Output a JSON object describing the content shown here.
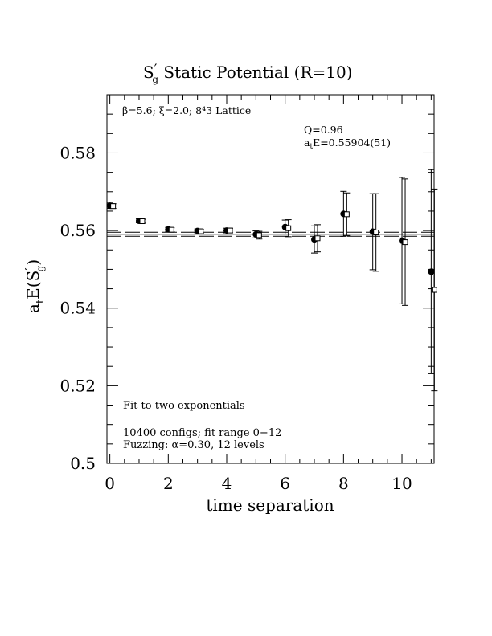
{
  "chart_data": {
    "type": "scatter",
    "title": "S′g  Static Potential (R=10)",
    "title_main": "S",
    "title_prime": "′",
    "title_sub": "g",
    "title_rest": "  Static Potential (R=10)",
    "xlabel": "time separation",
    "ylabel_main": "a",
    "ylabel_sub": "t",
    "ylabel_mid": "E(S",
    "ylabel_prime": "′",
    "ylabel_sub2": "g",
    "ylabel_end": ")",
    "xlim": [
      -0.1,
      11.1
    ],
    "ylim": [
      0.5,
      0.595
    ],
    "x_ticks": [
      0,
      2,
      4,
      6,
      8,
      10
    ],
    "x_tick_labels": [
      "0",
      "2",
      "4",
      "6",
      "8",
      "10"
    ],
    "y_ticks": [
      0.5,
      0.52,
      0.54,
      0.56,
      0.58
    ],
    "y_tick_labels": [
      "0.5",
      "0.52",
      "0.54",
      "0.56",
      "0.58"
    ],
    "annotations": {
      "lattice": "β=5.6; ξ=2.0; 8⁴3 Lattice",
      "q_value": "Q=0.96",
      "energy_main": "a",
      "energy_sub": "t",
      "energy_rest": "E=0.55904(51)",
      "fit_type": "Fit to two exponentials",
      "configs": "10400 configs; fit range 0−12",
      "fuzzing": "Fuzzing: α=0.30, 12 levels"
    },
    "fit": {
      "value": 0.55904,
      "error": 0.00051
    },
    "series": [
      {
        "marker": "filled-circle",
        "points": [
          {
            "x": 0,
            "y": 0.5664,
            "err": 0.0007
          },
          {
            "x": 1,
            "y": 0.5625,
            "err": 0.0005
          },
          {
            "x": 2,
            "y": 0.5603,
            "err": 0.0005
          },
          {
            "x": 3,
            "y": 0.5599,
            "err": 0.0005
          },
          {
            "x": 4,
            "y": 0.56,
            "err": 0.0006
          },
          {
            "x": 5,
            "y": 0.559,
            "err": 0.0009
          },
          {
            "x": 6,
            "y": 0.5609,
            "err": 0.0018
          },
          {
            "x": 7,
            "y": 0.5577,
            "err": 0.0035
          },
          {
            "x": 8,
            "y": 0.5643,
            "err": 0.0058
          },
          {
            "x": 9,
            "y": 0.5597,
            "err": 0.0098
          },
          {
            "x": 10,
            "y": 0.5574,
            "err": 0.0163
          },
          {
            "x": 11,
            "y": 0.5494,
            "err": 0.0263
          }
        ]
      },
      {
        "marker": "open-square",
        "points": [
          {
            "x": 0,
            "y": 0.5663,
            "err": 0.0006
          },
          {
            "x": 1,
            "y": 0.5624,
            "err": 0.0005
          },
          {
            "x": 2,
            "y": 0.5602,
            "err": 0.0005
          },
          {
            "x": 3,
            "y": 0.5598,
            "err": 0.0005
          },
          {
            "x": 4,
            "y": 0.56,
            "err": 0.0006
          },
          {
            "x": 5,
            "y": 0.5588,
            "err": 0.001
          },
          {
            "x": 6,
            "y": 0.5606,
            "err": 0.0022
          },
          {
            "x": 7,
            "y": 0.558,
            "err": 0.0035
          },
          {
            "x": 8,
            "y": 0.5642,
            "err": 0.0055
          },
          {
            "x": 9,
            "y": 0.5595,
            "err": 0.01
          },
          {
            "x": 10,
            "y": 0.557,
            "err": 0.0163
          },
          {
            "x": 11,
            "y": 0.5447,
            "err": 0.026
          }
        ]
      }
    ]
  }
}
